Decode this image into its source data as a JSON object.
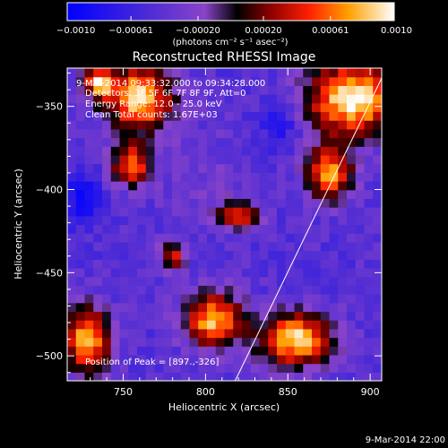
{
  "chart_data": {
    "type": "heatmap",
    "title": "Reconstructed RHESSI Image",
    "xlabel": "Heliocentric X (arcsec)",
    "ylabel": "Heliocentric Y (arcsec)",
    "xlim": [
      716,
      907
    ],
    "ylim": [
      -515,
      -327
    ],
    "x_ticks": [
      750,
      800,
      850,
      900
    ],
    "y_ticks": [
      -350,
      -400,
      -450,
      -500
    ],
    "colorbar": {
      "min": -0.001,
      "max": 0.001,
      "ticks": [
        "−0.0010",
        "−0.00061",
        "−0.00020",
        "0.00020",
        "0.00061",
        "0.0010"
      ],
      "tick_values": [
        -0.001,
        -0.00061,
        -0.0002,
        0.0002,
        0.00061,
        0.001
      ],
      "unit_label": "(photons cm⁻² s⁻¹ asec⁻²)"
    },
    "annotations": [
      "9-Mar-2014 09:33:32.000 to 09:34:28.000",
      "Detectors: 3F 5F 6F 7F 8F 9F, Att=0",
      "Energy Range: 12.0 - 25.0 keV",
      "Clean      Total counts: 1.67E+03"
    ],
    "peak_label": "Position of Peak = [897.,-326]",
    "peak_position": [
      897,
      -326
    ],
    "limb_line": [
      [
        818,
        -515
      ],
      [
        907,
        -333
      ]
    ],
    "blobs": [
      {
        "x": 890,
        "y": -345,
        "value": 0.001,
        "rx": 28,
        "ry": 22
      },
      {
        "x": 875,
        "y": -390,
        "value": 0.0007,
        "rx": 14,
        "ry": 16
      },
      {
        "x": 760,
        "y": -345,
        "value": 0.0009,
        "rx": 20,
        "ry": 20
      },
      {
        "x": 755,
        "y": -385,
        "value": 0.0006,
        "rx": 12,
        "ry": 12
      },
      {
        "x": 735,
        "y": -335,
        "value": 0.0007,
        "rx": 10,
        "ry": 10
      },
      {
        "x": 855,
        "y": -490,
        "value": 0.0009,
        "rx": 22,
        "ry": 16
      },
      {
        "x": 805,
        "y": -478,
        "value": 0.0008,
        "rx": 18,
        "ry": 16
      },
      {
        "x": 728,
        "y": -490,
        "value": 0.0008,
        "rx": 14,
        "ry": 20
      },
      {
        "x": 820,
        "y": -415,
        "value": 0.0005,
        "rx": 12,
        "ry": 8
      },
      {
        "x": 780,
        "y": -440,
        "value": 0.0004,
        "rx": 8,
        "ry": 8
      },
      {
        "x": 845,
        "y": -360,
        "value": -0.0008,
        "rx": 12,
        "ry": 14
      },
      {
        "x": 725,
        "y": -405,
        "value": -0.0009,
        "rx": 12,
        "ry": 16
      },
      {
        "x": 800,
        "y": -395,
        "value": -0.0003,
        "rx": 30,
        "ry": 30
      }
    ],
    "background_value": -0.00045
  },
  "footer": {
    "date": "9-Mar-2014 22:00"
  }
}
